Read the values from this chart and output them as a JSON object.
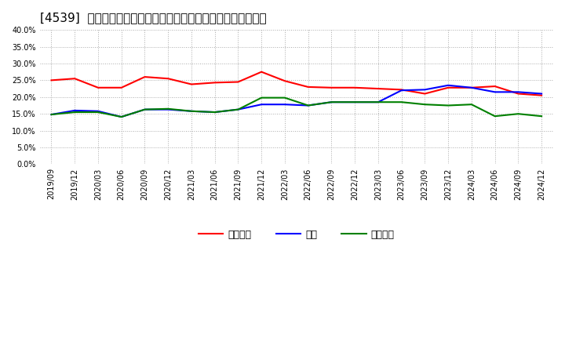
{
  "title": "[4539]  売上債権、在庫、買入債務の総資産に対する比率の推移",
  "x_labels": [
    "2019/09",
    "2019/12",
    "2020/03",
    "2020/06",
    "2020/09",
    "2020/12",
    "2021/03",
    "2021/06",
    "2021/09",
    "2021/12",
    "2022/03",
    "2022/06",
    "2022/09",
    "2022/12",
    "2023/03",
    "2023/06",
    "2023/09",
    "2023/12",
    "2024/03",
    "2024/06",
    "2024/09",
    "2024/12"
  ],
  "urikake": [
    0.25,
    0.255,
    0.228,
    0.228,
    0.26,
    0.255,
    0.238,
    0.243,
    0.245,
    0.275,
    0.248,
    0.23,
    0.228,
    0.228,
    0.225,
    0.222,
    0.21,
    0.228,
    0.228,
    0.232,
    0.21,
    0.205
  ],
  "zaiko": [
    0.148,
    0.16,
    0.158,
    0.141,
    0.163,
    0.163,
    0.158,
    0.155,
    0.163,
    0.178,
    0.178,
    0.175,
    0.185,
    0.185,
    0.185,
    0.22,
    0.222,
    0.235,
    0.228,
    0.215,
    0.215,
    0.21
  ],
  "kaiire": [
    0.148,
    0.155,
    0.155,
    0.141,
    0.163,
    0.165,
    0.158,
    0.155,
    0.163,
    0.198,
    0.198,
    0.175,
    0.185,
    0.185,
    0.185,
    0.185,
    0.178,
    0.175,
    0.178,
    0.143,
    0.15,
    0.143
  ],
  "urikake_color": "#ff0000",
  "zaiko_color": "#0000ff",
  "kaiire_color": "#008000",
  "ylim": [
    0.0,
    0.4
  ],
  "yticks": [
    0.0,
    0.05,
    0.1,
    0.15,
    0.2,
    0.25,
    0.3,
    0.35,
    0.4
  ],
  "legend_labels": [
    "売上債権",
    "在庫",
    "買入債務"
  ],
  "background_color": "#ffffff",
  "plot_bg_color": "#ffffff",
  "grid_color": "#aaaaaa",
  "title_fontsize": 11
}
